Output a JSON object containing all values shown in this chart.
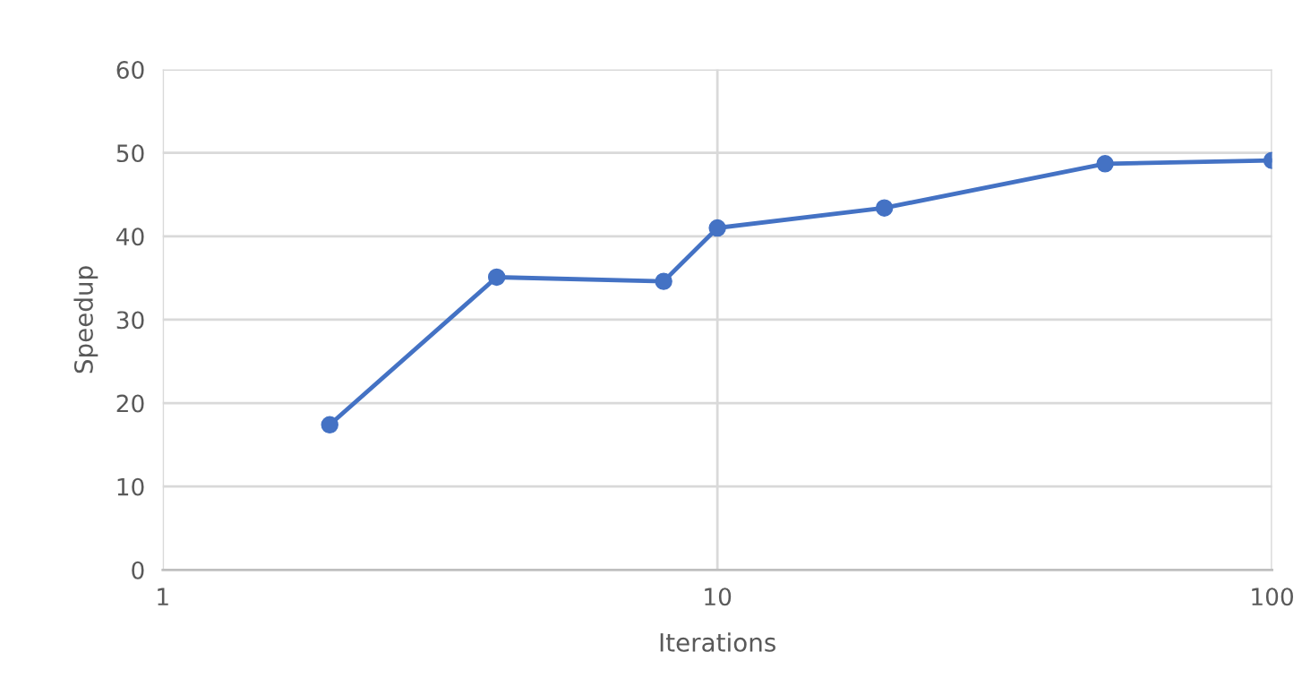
{
  "chart_data": {
    "type": "line",
    "xlabel": "Iterations",
    "ylabel": "Speedup",
    "x": [
      2,
      4,
      8,
      10,
      20,
      50,
      100
    ],
    "series": [
      {
        "color": "#4472c4",
        "values": [
          17.4,
          35.1,
          34.6,
          41.0,
          43.4,
          48.7,
          49.1
        ]
      }
    ],
    "log": "x",
    "xlim": [
      1,
      100
    ],
    "xticks": [
      1,
      10,
      100
    ],
    "ylim": [
      0,
      60
    ],
    "yticks": [
      0,
      10,
      20,
      30,
      40,
      50,
      60
    ],
    "grid": true,
    "marker": "circle",
    "line_style": "solid"
  }
}
